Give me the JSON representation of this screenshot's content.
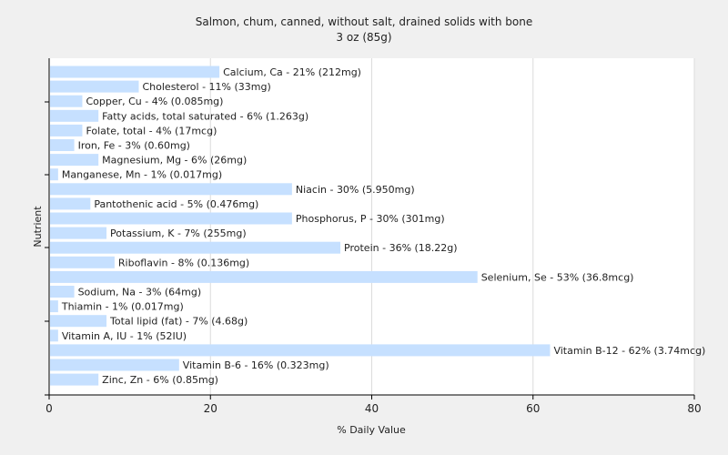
{
  "chart_data": {
    "type": "bar",
    "orientation": "horizontal",
    "title": "Salmon, chum, canned, without salt, drained solids with bone",
    "subtitle": "3 oz (85g)",
    "xlabel": "% Daily Value",
    "ylabel": "Nutrient",
    "xlim": [
      0,
      80
    ],
    "xticks": [
      "0",
      "20",
      "40",
      "60",
      "80"
    ],
    "grid": true,
    "bar_color": "#c6e0ff",
    "categories": [
      "Calcium, Ca",
      "Cholesterol",
      "Copper, Cu",
      "Fatty acids, total saturated",
      "Folate, total",
      "Iron, Fe",
      "Magnesium, Mg",
      "Manganese, Mn",
      "Niacin",
      "Pantothenic acid",
      "Phosphorus, P",
      "Potassium, K",
      "Protein",
      "Riboflavin",
      "Selenium, Se",
      "Sodium, Na",
      "Thiamin",
      "Total lipid (fat)",
      "Vitamin A, IU",
      "Vitamin B-12",
      "Vitamin B-6",
      "Zinc, Zn"
    ],
    "values": [
      21,
      11,
      4,
      6,
      4,
      3,
      6,
      1,
      30,
      5,
      30,
      7,
      36,
      8,
      53,
      3,
      1,
      7,
      1,
      62,
      16,
      6
    ],
    "labels": [
      "Calcium, Ca - 21% (212mg)",
      "Cholesterol - 11% (33mg)",
      "Copper, Cu - 4% (0.085mg)",
      "Fatty acids, total saturated - 6% (1.263g)",
      "Folate, total - 4% (17mcg)",
      "Iron, Fe - 3% (0.60mg)",
      "Magnesium, Mg - 6% (26mg)",
      "Manganese, Mn - 1% (0.017mg)",
      "Niacin - 30% (5.950mg)",
      "Pantothenic acid - 5% (0.476mg)",
      "Phosphorus, P - 30% (301mg)",
      "Potassium, K - 7% (255mg)",
      "Protein - 36% (18.22g)",
      "Riboflavin - 8% (0.136mg)",
      "Selenium, Se - 53% (36.8mcg)",
      "Sodium, Na - 3% (64mg)",
      "Thiamin - 1% (0.017mg)",
      "Total lipid (fat) - 7% (4.68g)",
      "Vitamin A, IU - 1% (52IU)",
      "Vitamin B-12 - 62% (3.74mcg)",
      "Vitamin B-6 - 16% (0.323mg)",
      "Zinc, Zn - 6% (0.85mg)"
    ]
  }
}
